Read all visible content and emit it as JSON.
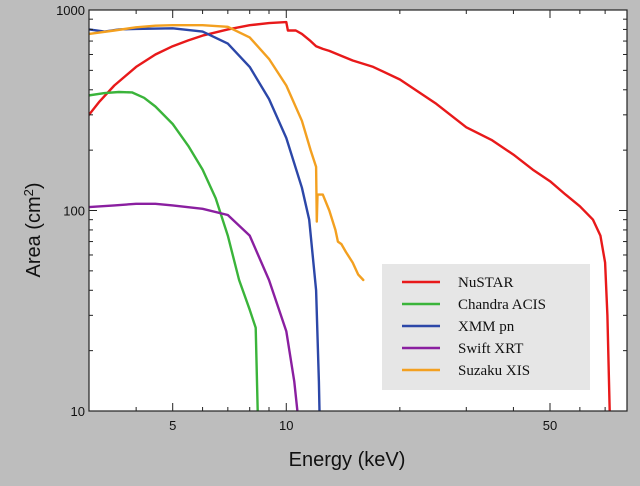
{
  "chart_data": {
    "type": "line",
    "title": "",
    "xlabel": "Energy (keV)",
    "ylabel": "Area (cm²)",
    "ylabel_base": "Area (cm",
    "ylabel_exp": "2",
    "ylabel_close": ")",
    "x_scale": "log",
    "y_scale": "log",
    "xlim": [
      3,
      80
    ],
    "ylim": [
      10,
      1000
    ],
    "x_ticks": [
      5,
      10,
      50
    ],
    "x_tick_labels": [
      "5",
      "10",
      "50"
    ],
    "y_ticks": [
      10,
      100,
      1000
    ],
    "y_tick_labels": [
      "10",
      "100",
      "1000"
    ],
    "legend_placement": "bottom-right",
    "series": [
      {
        "name": "NuSTAR",
        "color": "#e8191a",
        "points": [
          [
            3,
            300
          ],
          [
            3.2,
            350
          ],
          [
            3.5,
            420
          ],
          [
            4,
            520
          ],
          [
            4.5,
            600
          ],
          [
            5,
            660
          ],
          [
            5.5,
            705
          ],
          [
            6,
            745
          ],
          [
            7,
            800
          ],
          [
            8,
            840
          ],
          [
            9,
            860
          ],
          [
            10,
            870
          ],
          [
            10.1,
            790
          ],
          [
            10.6,
            790
          ],
          [
            11,
            760
          ],
          [
            11.6,
            700
          ],
          [
            12,
            660
          ],
          [
            12.5,
            640
          ],
          [
            13,
            625
          ],
          [
            14,
            590
          ],
          [
            15,
            560
          ],
          [
            17,
            520
          ],
          [
            20,
            450
          ],
          [
            25,
            340
          ],
          [
            30,
            260
          ],
          [
            35,
            225
          ],
          [
            40,
            190
          ],
          [
            45,
            160
          ],
          [
            50,
            140
          ],
          [
            55,
            120
          ],
          [
            60,
            105
          ],
          [
            65,
            90
          ],
          [
            68,
            75
          ],
          [
            70,
            55
          ],
          [
            71,
            30
          ],
          [
            72,
            10
          ]
        ]
      },
      {
        "name": "Chandra ACIS",
        "color": "#3ab43a",
        "points": [
          [
            3,
            375
          ],
          [
            3.3,
            385
          ],
          [
            3.6,
            390
          ],
          [
            3.9,
            388
          ],
          [
            4.2,
            365
          ],
          [
            4.5,
            330
          ],
          [
            5,
            270
          ],
          [
            5.5,
            210
          ],
          [
            6,
            160
          ],
          [
            6.5,
            115
          ],
          [
            7,
            75
          ],
          [
            7.5,
            45
          ],
          [
            8,
            32
          ],
          [
            8.3,
            26
          ],
          [
            8.4,
            10
          ]
        ]
      },
      {
        "name": "XMM pn",
        "color": "#2c47a8",
        "points": [
          [
            3,
            800
          ],
          [
            3.3,
            780
          ],
          [
            3.6,
            800
          ],
          [
            4,
            805
          ],
          [
            5,
            810
          ],
          [
            6,
            780
          ],
          [
            7,
            680
          ],
          [
            8,
            520
          ],
          [
            9,
            360
          ],
          [
            10,
            230
          ],
          [
            11,
            130
          ],
          [
            11.5,
            90
          ],
          [
            12,
            40
          ],
          [
            12.2,
            14
          ],
          [
            12.25,
            10
          ]
        ]
      },
      {
        "name": "Swift XRT",
        "color": "#8a1fa0",
        "points": [
          [
            3,
            104
          ],
          [
            3.5,
            106
          ],
          [
            4,
            108
          ],
          [
            4.5,
            108
          ],
          [
            5,
            106
          ],
          [
            6,
            102
          ],
          [
            7,
            95
          ],
          [
            8,
            75
          ],
          [
            9,
            45
          ],
          [
            10,
            25
          ],
          [
            10.5,
            14
          ],
          [
            10.7,
            10
          ]
        ]
      },
      {
        "name": "Suzaku XIS",
        "color": "#f3a020",
        "points": [
          [
            3,
            760
          ],
          [
            3.5,
            790
          ],
          [
            4,
            820
          ],
          [
            4.5,
            835
          ],
          [
            5,
            840
          ],
          [
            6,
            840
          ],
          [
            7,
            825
          ],
          [
            8,
            730
          ],
          [
            9,
            570
          ],
          [
            10,
            420
          ],
          [
            11,
            280
          ],
          [
            11.6,
            200
          ],
          [
            12,
            165
          ],
          [
            12.05,
            88
          ],
          [
            12.1,
            120
          ],
          [
            12.5,
            120
          ],
          [
            13,
            100
          ],
          [
            13.5,
            80
          ],
          [
            13.7,
            70
          ],
          [
            14,
            68
          ],
          [
            14.4,
            62
          ],
          [
            15,
            55
          ],
          [
            15.5,
            48
          ],
          [
            16,
            45
          ]
        ]
      }
    ]
  }
}
